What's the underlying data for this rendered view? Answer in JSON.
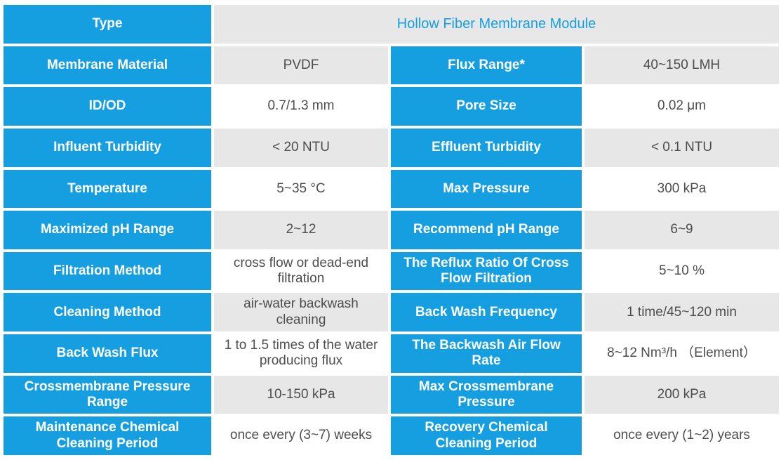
{
  "colors": {
    "accent_blue": "#169FE0",
    "cell_gray": "#E7E7E7",
    "text_dark": "#4D4D4D",
    "label_text": "#FFFFFF"
  },
  "header": {
    "label": "Type",
    "value": "Hollow Fiber Membrane Module"
  },
  "rows": [
    {
      "left_label": "Membrane Material",
      "left_value": "PVDF",
      "right_label": "Flux Range*",
      "right_value": "40~150 LMH"
    },
    {
      "left_label": "ID/OD",
      "left_value": "0.7/1.3 mm",
      "right_label": "Pore Size",
      "right_value": "0.02 μm"
    },
    {
      "left_label": "Influent Turbidity",
      "left_value": "< 20 NTU",
      "right_label": "Effluent Turbidity",
      "right_value": "< 0.1 NTU"
    },
    {
      "left_label": "Temperature",
      "left_value": "5~35 °C",
      "right_label": "Max Pressure",
      "right_value": "300 kPa"
    },
    {
      "left_label": "Maximized pH Range",
      "left_value": "2~12",
      "right_label": "Recommend pH Range",
      "right_value": "6~9"
    },
    {
      "left_label": "Filtration Method",
      "left_value": "cross flow or dead-end filtration",
      "right_label": "The Reflux Ratio Of Cross Flow Filtration",
      "right_value": "5~10 %"
    },
    {
      "left_label": "Cleaning Method",
      "left_value": "air-water backwash cleaning",
      "right_label": "Back Wash Frequency",
      "right_value": "1 time/45~120 min"
    },
    {
      "left_label": "Back Wash Flux",
      "left_value": "1 to 1.5 times of the water producing flux",
      "right_label": "The Backwash Air Flow Rate",
      "right_value": "8~12 Nm³/h （Element）"
    },
    {
      "left_label": "Crossmembrane Pressure Range",
      "left_value": "10-150 kPa",
      "right_label": "Max Crossmembrane Pressure",
      "right_value": "200 kPa"
    },
    {
      "left_label": "Maintenance Chemical Cleaning Period",
      "left_value": "once every (3~7) weeks",
      "right_label": "Recovery Chemical Cleaning Period",
      "right_value": "once every (1~2) years"
    }
  ]
}
